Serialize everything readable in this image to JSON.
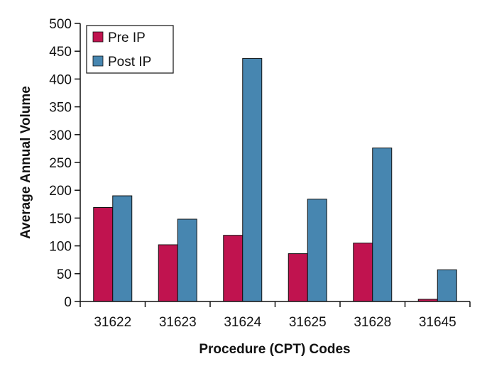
{
  "chart_data": {
    "type": "bar",
    "categories": [
      "31622",
      "31623",
      "31624",
      "31625",
      "31628",
      "31645"
    ],
    "series": [
      {
        "name": "Pre IP",
        "color": "#c0134f",
        "values": [
          169,
          102,
          119,
          86,
          105,
          4
        ]
      },
      {
        "name": "Post IP",
        "color": "#4786b0",
        "values": [
          190,
          148,
          437,
          184,
          276,
          57
        ]
      }
    ],
    "title": "",
    "xlabel": "Procedure (CPT) Codes",
    "ylabel": "Average Annual Volume",
    "ylim": [
      0,
      500
    ],
    "yticks": [
      0,
      50,
      100,
      150,
      200,
      250,
      300,
      350,
      400,
      450,
      500
    ],
    "grid": false,
    "legend_position": "top-left"
  }
}
